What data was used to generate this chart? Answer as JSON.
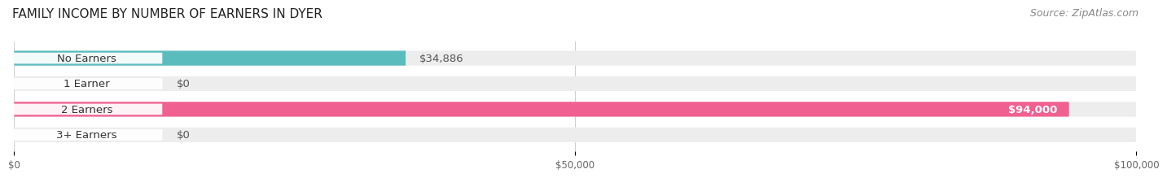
{
  "title": "FAMILY INCOME BY NUMBER OF EARNERS IN DYER",
  "source": "Source: ZipAtlas.com",
  "categories": [
    "No Earners",
    "1 Earner",
    "2 Earners",
    "3+ Earners"
  ],
  "values": [
    34886,
    0,
    94000,
    0
  ],
  "bar_colors": [
    "#5BBCBE",
    "#A8A8D8",
    "#F06090",
    "#F5C89A"
  ],
  "bar_bg_color": "#EDEDEE",
  "xlim": [
    0,
    100000
  ],
  "xticks": [
    0,
    50000,
    100000
  ],
  "xticklabels": [
    "$0",
    "$50,000",
    "$100,000"
  ],
  "value_labels": [
    "$34,886",
    "$0",
    "$94,000",
    "$0"
  ],
  "title_fontsize": 11,
  "source_fontsize": 9,
  "label_fontsize": 9.5,
  "bar_height": 0.58,
  "background_color": "#FFFFFF"
}
